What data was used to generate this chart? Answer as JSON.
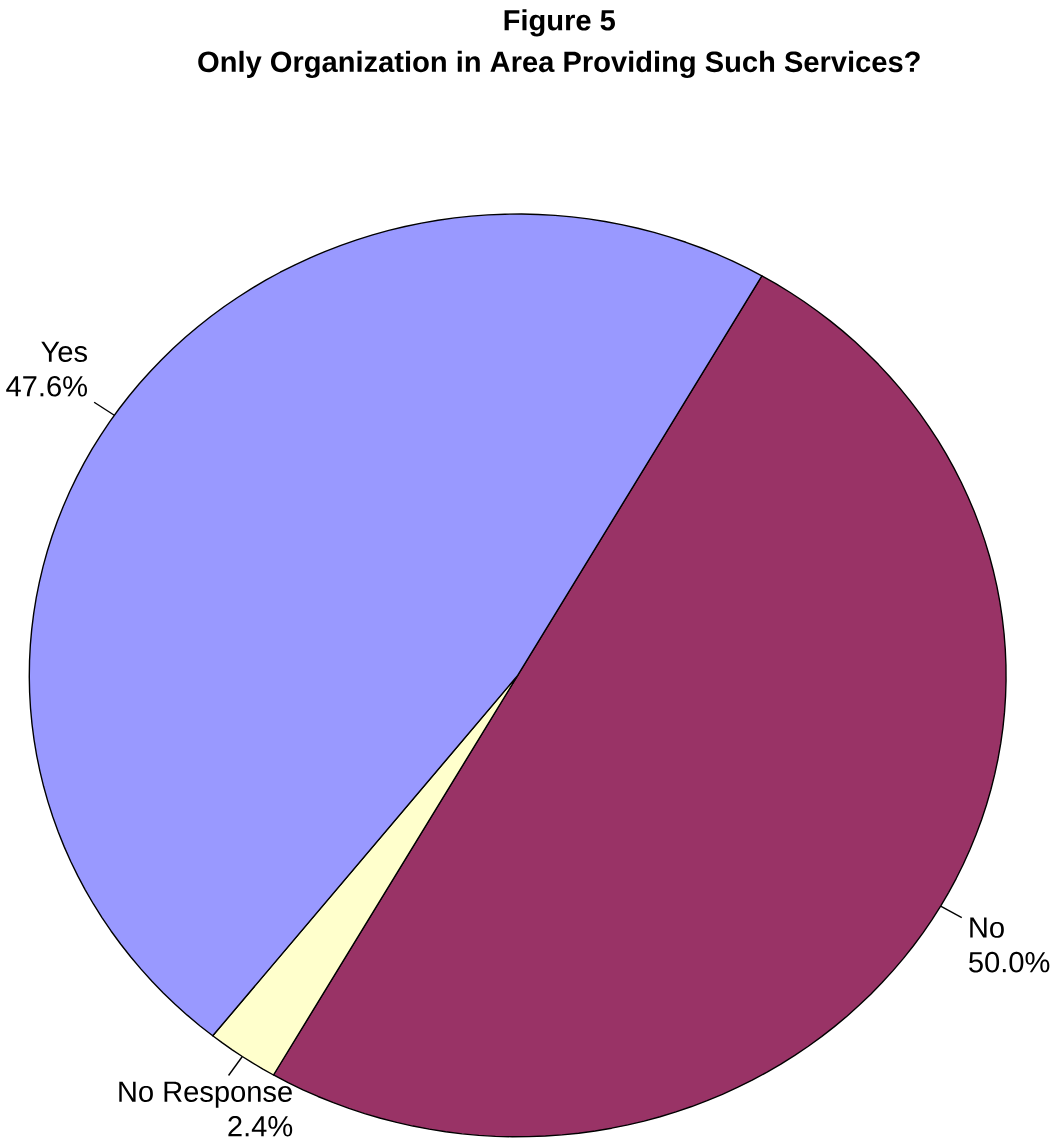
{
  "chart_data": {
    "type": "pie",
    "title": "Figure 5",
    "subtitle": "Only Organization in Area Providing Such Services?",
    "categories": [
      "No",
      "No Response",
      "Yes"
    ],
    "values": [
      50.0,
      2.4,
      47.6
    ],
    "value_labels": [
      "50.0%",
      "2.4%",
      "47.6%"
    ],
    "colors": [
      "#993366",
      "#ffffcc",
      "#9999ff"
    ]
  }
}
